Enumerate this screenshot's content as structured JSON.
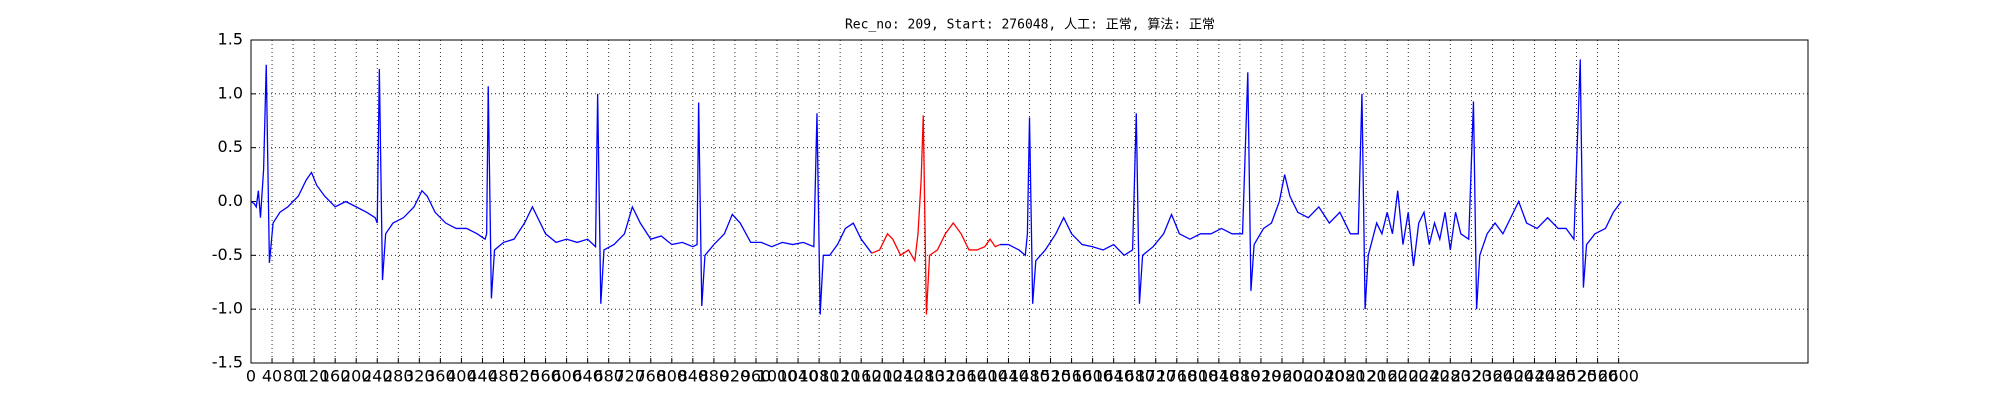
{
  "chart_data": {
    "type": "line",
    "title": "Rec_no: 209, Start: 276048, 人工: 正常, 算法: 正常",
    "xlim": [
      0,
      2960
    ],
    "ylim": [
      -1.5,
      1.5
    ],
    "xticks": [
      0,
      40,
      80,
      120,
      160,
      200,
      240,
      280,
      320,
      360,
      400,
      440,
      480,
      520,
      560,
      600,
      640,
      680,
      720,
      760,
      800,
      840,
      880,
      920,
      960,
      1000,
      1040,
      1080,
      1120,
      1160,
      1200,
      1240,
      1280,
      1320,
      1360,
      1400,
      1440,
      1480,
      1520,
      1560,
      1600,
      1640,
      1680,
      1720,
      1760,
      1800,
      1840,
      1880,
      1920,
      1960,
      2000,
      2040,
      2080,
      2120,
      2160,
      2200,
      2240,
      2280,
      2320,
      2360,
      2400,
      2440,
      2480,
      2520,
      2560,
      2600
    ],
    "yticks": [
      -1.5,
      {
        "value": -1,
        "label": "-1.0"
      },
      -0.5,
      {
        "value": 0,
        "label": "0.0"
      },
      0.5,
      {
        "value": 1,
        "label": "1.0"
      },
      1.5
    ],
    "grid": true,
    "series": [
      {
        "color": "#0000ff",
        "x": [
          0,
          6,
          10,
          14,
          18,
          24,
          29,
          35,
          42,
          55,
          70,
          90,
          105,
          115,
          125,
          140,
          160,
          180,
          200,
          220,
          236,
          240,
          244,
          250,
          256,
          270,
          290,
          310,
          325,
          335,
          350,
          370,
          390,
          410,
          430,
          445,
          448,
          451,
          457,
          463,
          480,
          500,
          520,
          535,
          545,
          560,
          580,
          600,
          620,
          640,
          655,
          659,
          665,
          671,
          690,
          710,
          725,
          740,
          760,
          780,
          800,
          820,
          840,
          848,
          851,
          857,
          863,
          880,
          900,
          915,
          930,
          950,
          970,
          990,
          1010,
          1030,
          1050,
          1070,
          1076,
          1082,
          1088,
          1100,
          1115,
          1130,
          1145,
          1160,
          1180,
          1300,
          1424,
          1440,
          1460,
          1472,
          1476,
          1480,
          1486,
          1492,
          1510,
          1530,
          1545,
          1560,
          1580,
          1600,
          1620,
          1640,
          1660,
          1676,
          1683,
          1689,
          1695,
          1715,
          1735,
          1750,
          1765,
          1785,
          1805,
          1825,
          1845,
          1865,
          1885,
          1895,
          1901,
          1907,
          1925,
          1940,
          1955,
          1965,
          1975,
          1990,
          2010,
          2030,
          2050,
          2070,
          2090,
          2105,
          2112,
          2118,
          2124,
          2140,
          2150,
          2160,
          2170,
          2180,
          2190,
          2200,
          2210,
          2220,
          2230,
          2240,
          2250,
          2260,
          2270,
          2280,
          2290,
          2300,
          2315,
          2324,
          2330,
          2336,
          2350,
          2365,
          2380,
          2400,
          2410,
          2425,
          2445,
          2465,
          2485,
          2500,
          2515,
          2527,
          2533,
          2539,
          2555,
          2575,
          2590,
          2605
        ],
        "values": [
          0.0,
          -0.02,
          -0.05,
          0.1,
          -0.15,
          0.3,
          1.27,
          -0.57,
          -0.2,
          -0.1,
          -0.05,
          0.05,
          0.2,
          0.27,
          0.15,
          0.05,
          -0.05,
          0.0,
          -0.05,
          -0.1,
          -0.15,
          -0.2,
          1.23,
          -0.73,
          -0.3,
          -0.2,
          -0.15,
          -0.05,
          0.1,
          0.05,
          -0.1,
          -0.2,
          -0.25,
          -0.25,
          -0.3,
          -0.35,
          -0.3,
          1.07,
          -0.9,
          -0.45,
          -0.38,
          -0.35,
          -0.2,
          -0.05,
          -0.15,
          -0.3,
          -0.38,
          -0.35,
          -0.38,
          -0.35,
          -0.42,
          1.0,
          -0.95,
          -0.45,
          -0.4,
          -0.3,
          -0.05,
          -0.2,
          -0.35,
          -0.32,
          -0.4,
          -0.38,
          -0.42,
          -0.4,
          0.92,
          -0.97,
          -0.5,
          -0.4,
          -0.3,
          -0.12,
          -0.2,
          -0.38,
          -0.38,
          -0.42,
          -0.38,
          -0.4,
          -0.38,
          -0.42,
          0.82,
          -1.05,
          -0.5,
          -0.5,
          -0.4,
          -0.25,
          -0.2,
          -0.35,
          -0.48,
          null,
          -0.4,
          -0.4,
          -0.45,
          -0.5,
          -0.3,
          0.78,
          -0.95,
          -0.55,
          -0.45,
          -0.3,
          -0.15,
          -0.3,
          -0.4,
          -0.42,
          -0.45,
          -0.4,
          -0.5,
          -0.45,
          0.82,
          -0.95,
          -0.5,
          -0.42,
          -0.3,
          -0.12,
          -0.3,
          -0.35,
          -0.3,
          -0.3,
          -0.25,
          -0.3,
          -0.3,
          1.2,
          -0.83,
          -0.4,
          -0.25,
          -0.2,
          0.0,
          0.25,
          0.05,
          -0.1,
          -0.15,
          -0.05,
          -0.2,
          -0.1,
          -0.3,
          -0.3,
          1.0,
          -1.0,
          -0.5,
          -0.2,
          -0.3,
          -0.1,
          -0.3,
          0.1,
          -0.4,
          -0.1,
          -0.6,
          -0.2,
          -0.1,
          -0.4,
          -0.2,
          -0.35,
          -0.1,
          -0.45,
          -0.1,
          -0.3,
          -0.35,
          0.93,
          -1.0,
          -0.5,
          -0.3,
          -0.2,
          -0.3,
          -0.1,
          0.0,
          -0.2,
          -0.25,
          -0.15,
          -0.25,
          -0.25,
          -0.35,
          1.32,
          -0.8,
          -0.4,
          -0.3,
          -0.25,
          -0.1,
          0.0
        ]
      },
      {
        "color": "#ff0000",
        "x": [
          1180,
          1195,
          1210,
          1220,
          1235,
          1250,
          1262,
          1268,
          1274,
          1278,
          1284,
          1290,
          1305,
          1320,
          1335,
          1350,
          1365,
          1380,
          1395,
          1405,
          1415,
          1424
        ],
        "values": [
          -0.48,
          -0.45,
          -0.3,
          -0.35,
          -0.5,
          -0.45,
          -0.55,
          -0.3,
          0.2,
          0.8,
          -1.05,
          -0.5,
          -0.45,
          -0.3,
          -0.2,
          -0.3,
          -0.45,
          -0.45,
          -0.42,
          -0.35,
          -0.42,
          -0.4
        ]
      }
    ]
  }
}
